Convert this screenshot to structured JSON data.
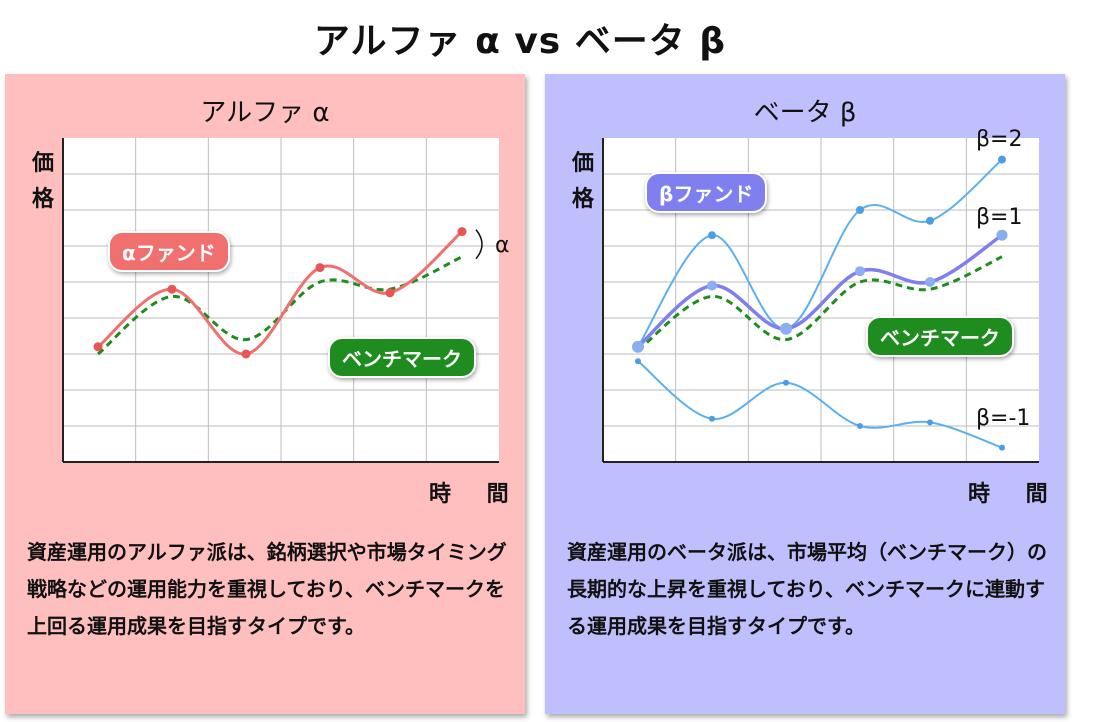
{
  "title": "アルファ α vs ベータ β",
  "alpha_panel": {
    "title": "アルファ α",
    "ylabel": "価格",
    "xlabel": "時 間",
    "fund_label": "αファンド",
    "benchmark_label": "ベンチマーク",
    "alpha_tag": "α",
    "description": "資産運用のアルファ派は、銘柄選択や市場タイミング戦略などの運用能力を重視しており、ベンチマークを上回る運用成果を目指すタイプです。"
  },
  "beta_panel": {
    "title": "ベータ β",
    "ylabel": "価格",
    "xlabel": "時 間",
    "fund_label": "βファンド",
    "benchmark_label": "ベンチマーク",
    "beta2_label": "β=2",
    "beta1_label": "β=1",
    "betam1_label": "β=-1",
    "description": "資産運用のベータ派は、市場平均（ベンチマーク）の長期的な上昇を重視しており、ベンチマークに連動する運用成果を目指すタイプです。"
  },
  "colors": {
    "alpha_panel_bg": "#ffbfbf",
    "beta_panel_bg": "#bfbffd",
    "alpha_fund": "#f07070",
    "benchmark": "#1e8c1e",
    "beta_fund": "#7f7ff0",
    "beta_lines": "#5ab0f0"
  },
  "chart_data": [
    {
      "type": "line",
      "title": "アルファ α",
      "xlabel": "時 間",
      "ylabel": "価格",
      "x": [
        1,
        2,
        3,
        4,
        5,
        6
      ],
      "ylim": [
        0,
        9
      ],
      "series": [
        {
          "name": "αファンド",
          "values": [
            3.2,
            4.8,
            3.0,
            5.4,
            4.7,
            6.4
          ]
        },
        {
          "name": "ベンチマーク",
          "values": [
            3.0,
            4.6,
            3.4,
            5.0,
            4.8,
            5.7
          ]
        }
      ]
    },
    {
      "type": "line",
      "title": "ベータ β",
      "xlabel": "時 間",
      "ylabel": "価格",
      "x": [
        1,
        2,
        3,
        4,
        5,
        6
      ],
      "ylim": [
        0,
        9
      ],
      "series": [
        {
          "name": "β=2",
          "values": [
            3.2,
            6.3,
            3.7,
            7.0,
            6.7,
            8.4
          ]
        },
        {
          "name": "β=1",
          "values": [
            3.2,
            4.9,
            3.7,
            5.3,
            5.0,
            6.3
          ]
        },
        {
          "name": "ベンチマーク",
          "values": [
            3.1,
            4.6,
            3.4,
            5.0,
            4.8,
            5.7
          ]
        },
        {
          "name": "β=-1",
          "values": [
            2.8,
            1.2,
            2.2,
            1.0,
            1.1,
            0.4
          ]
        }
      ]
    }
  ]
}
